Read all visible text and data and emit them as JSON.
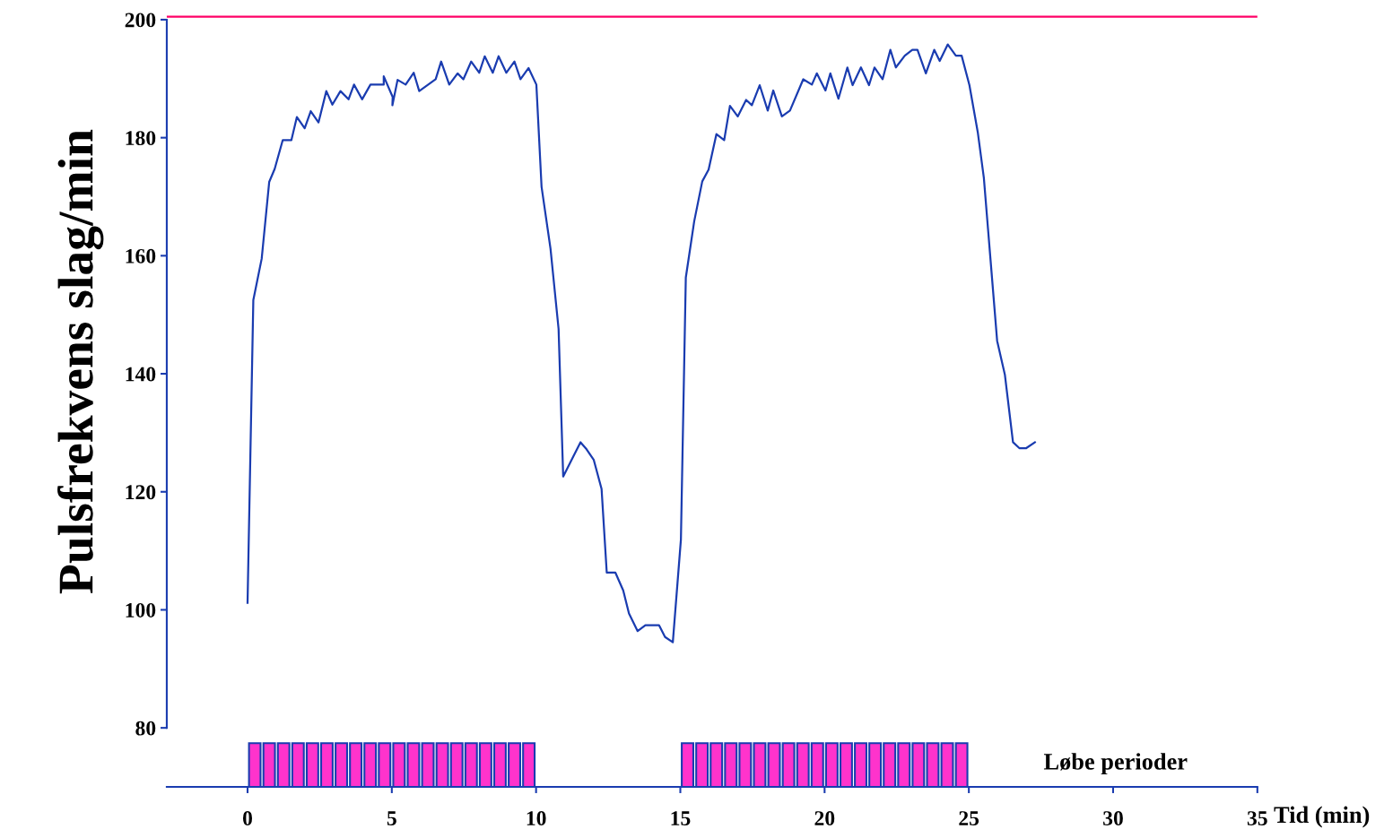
{
  "chart_data": {
    "type": "line",
    "ylabel": "Pulsfrekvens slag/min",
    "xlabel": "Tid (min)",
    "xlim": [
      -2.8,
      35
    ],
    "xticks": [
      0,
      5,
      10,
      15,
      20,
      25,
      30,
      35
    ],
    "ylim": [
      70,
      201
    ],
    "yticks": [
      80,
      100,
      120,
      140,
      160,
      180,
      200
    ],
    "grid": false,
    "legend": false,
    "marker": "none",
    "line_style": "solid",
    "ref_lines": [
      {
        "axis": "y",
        "value": 200.5,
        "color": "#ff0066"
      }
    ],
    "annotations": [
      "Løbe perioder"
    ],
    "series": [
      {
        "color": "#1a3cb0",
        "x": [
          0,
          0.2,
          0.49,
          0.75,
          0.94,
          1.22,
          1.52,
          1.71,
          1.98,
          2.19,
          2.46,
          2.73,
          2.94,
          3.22,
          3.5,
          3.69,
          3.97,
          4.26,
          4.72,
          4.72,
          5.03,
          5.02,
          5.2,
          5.48,
          5.76,
          5.95,
          6.52,
          6.71,
          6.99,
          7.28,
          7.48,
          7.75,
          8.03,
          8.22,
          8.5,
          8.7,
          8.97,
          9.25,
          9.46,
          9.74,
          10.01,
          10.19,
          10.5,
          10.78,
          10.94,
          11.54,
          11.75,
          12.0,
          12.27,
          12.45,
          12.75,
          13.02,
          13.22,
          13.52,
          13.79,
          14.26,
          14.47,
          14.74,
          15.02,
          15.19,
          15.48,
          15.76,
          15.98,
          16.25,
          16.52,
          16.72,
          16.99,
          17.28,
          17.48,
          17.75,
          18.03,
          18.22,
          18.52,
          18.8,
          19.26,
          19.56,
          19.73,
          20.03,
          20.2,
          20.48,
          20.79,
          20.97,
          21.26,
          21.54,
          21.73,
          22.01,
          22.28,
          22.47,
          22.78,
          23.04,
          23.22,
          23.51,
          23.8,
          23.99,
          24.27,
          24.55,
          24.75,
          25.02,
          25.31,
          25.52,
          25.74,
          25.98,
          26.25,
          26.53,
          26.75,
          26.99,
          27.29
        ],
        "values": [
          101.2,
          152.5,
          159.5,
          172.5,
          174.7,
          179.6,
          179.6,
          183.5,
          181.6,
          184.5,
          182.6,
          187.9,
          185.6,
          187.9,
          186.5,
          189.0,
          186.5,
          189.0,
          189.0,
          190.4,
          186.9,
          185.5,
          189.8,
          189.0,
          191.0,
          187.9,
          189.9,
          192.9,
          189.0,
          190.9,
          189.9,
          192.9,
          191.0,
          193.8,
          191.0,
          193.8,
          191.0,
          192.9,
          189.9,
          191.8,
          189.0,
          171.7,
          161.2,
          147.6,
          122.6,
          128.4,
          127.2,
          125.4,
          120.5,
          106.3,
          106.3,
          103.3,
          99.4,
          96.4,
          97.4,
          97.4,
          95.4,
          94.5,
          111.9,
          156.3,
          165.8,
          172.6,
          174.6,
          180.6,
          179.6,
          185.4,
          183.6,
          186.4,
          185.5,
          188.9,
          184.6,
          188.0,
          183.6,
          184.6,
          189.9,
          189.0,
          190.9,
          188.0,
          190.9,
          186.6,
          191.9,
          188.9,
          191.9,
          188.9,
          191.9,
          189.9,
          194.9,
          191.9,
          193.9,
          194.9,
          194.9,
          190.9,
          194.9,
          193.0,
          195.8,
          193.9,
          193.9,
          188.9,
          180.9,
          173.2,
          160.0,
          145.6,
          139.8,
          128.4,
          127.4,
          127.4,
          128.4
        ]
      },
      {
        "type": "bar",
        "color": "#ff33cc",
        "x": [
          0.25,
          0.75,
          1.25,
          1.75,
          2.25,
          2.75,
          3.25,
          3.75,
          4.25,
          4.75,
          5.25,
          5.75,
          6.25,
          6.75,
          7.25,
          7.75,
          8.25,
          8.75,
          9.25,
          9.75,
          15.25,
          15.75,
          16.25,
          16.75,
          17.25,
          17.75,
          18.25,
          18.75,
          19.25,
          19.75,
          20.25,
          20.75,
          21.25,
          21.75,
          22.25,
          22.75,
          23.25,
          23.75,
          24.25,
          24.75
        ],
        "base": [
          70,
          70,
          70,
          70,
          70,
          70,
          70,
          70,
          70,
          70,
          70,
          70,
          70,
          70,
          70,
          70,
          70,
          70,
          70,
          70,
          70,
          70,
          70,
          70,
          70,
          70,
          70,
          70,
          70,
          70,
          70,
          70,
          70,
          70,
          70,
          70,
          70,
          70,
          70,
          70
        ],
        "values": [
          7.4,
          7.4,
          7.4,
          7.4,
          7.4,
          7.4,
          7.4,
          7.4,
          7.4,
          7.4,
          7.4,
          7.4,
          7.4,
          7.4,
          7.4,
          7.4,
          7.4,
          7.4,
          7.4,
          7.4,
          7.4,
          7.4,
          7.4,
          7.4,
          7.4,
          7.4,
          7.4,
          7.4,
          7.4,
          7.4,
          7.4,
          7.4,
          7.4,
          7.4,
          7.4,
          7.4,
          7.4,
          7.4,
          7.4,
          7.4
        ]
      }
    ]
  }
}
